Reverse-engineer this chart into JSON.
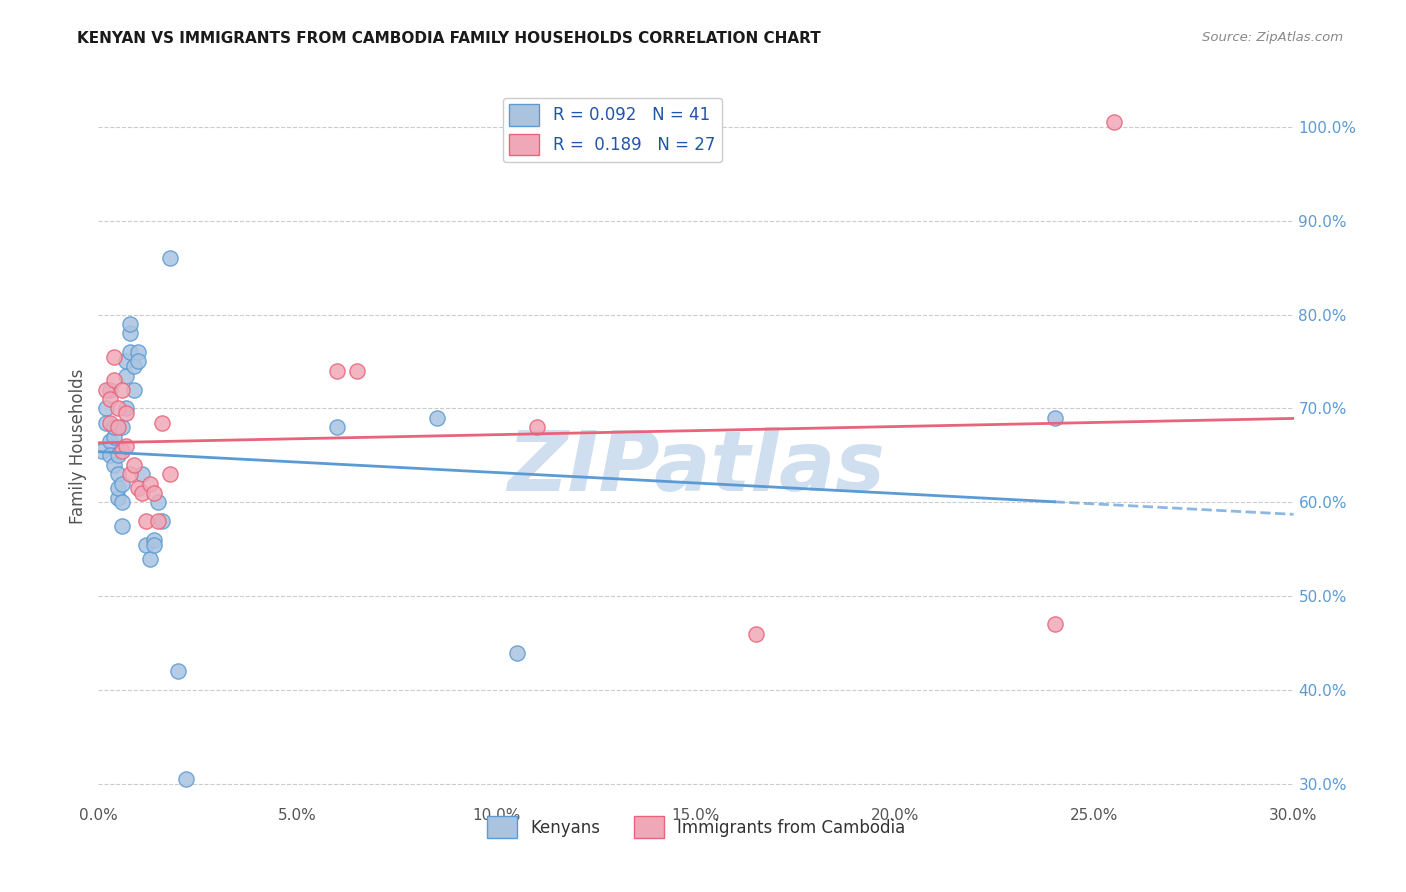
{
  "title": "KENYAN VS IMMIGRANTS FROM CAMBODIA FAMILY HOUSEHOLDS CORRELATION CHART",
  "source": "Source: ZipAtlas.com",
  "ylabel_left": "Family Households",
  "xlim": [
    0.0,
    0.3
  ],
  "ylim": [
    0.28,
    1.04
  ],
  "kenyan_color": "#aac4e0",
  "cambodia_color": "#f0a8b8",
  "kenyan_line_color": "#5b9bd5",
  "cambodia_line_color": "#e8647a",
  "R_kenyan": 0.092,
  "N_kenyan": 41,
  "R_cambodia": 0.189,
  "N_cambodia": 27,
  "kenyan_x": [
    0.001,
    0.002,
    0.002,
    0.003,
    0.003,
    0.003,
    0.004,
    0.004,
    0.004,
    0.005,
    0.005,
    0.005,
    0.005,
    0.006,
    0.006,
    0.006,
    0.006,
    0.007,
    0.007,
    0.007,
    0.008,
    0.008,
    0.008,
    0.009,
    0.009,
    0.01,
    0.01,
    0.011,
    0.012,
    0.013,
    0.014,
    0.014,
    0.015,
    0.016,
    0.018,
    0.02,
    0.022,
    0.06,
    0.085,
    0.24,
    0.105
  ],
  "kenyan_y": [
    0.655,
    0.7,
    0.685,
    0.665,
    0.65,
    0.72,
    0.64,
    0.67,
    0.68,
    0.65,
    0.63,
    0.605,
    0.615,
    0.6,
    0.575,
    0.62,
    0.68,
    0.7,
    0.735,
    0.75,
    0.78,
    0.79,
    0.76,
    0.72,
    0.745,
    0.76,
    0.75,
    0.63,
    0.555,
    0.54,
    0.56,
    0.555,
    0.6,
    0.58,
    0.86,
    0.42,
    0.305,
    0.68,
    0.69,
    0.69,
    0.44
  ],
  "cambodia_x": [
    0.002,
    0.003,
    0.003,
    0.004,
    0.004,
    0.005,
    0.005,
    0.006,
    0.006,
    0.007,
    0.007,
    0.008,
    0.009,
    0.01,
    0.011,
    0.012,
    0.013,
    0.014,
    0.015,
    0.016,
    0.018,
    0.06,
    0.065,
    0.11,
    0.165,
    0.24,
    0.255
  ],
  "cambodia_y": [
    0.72,
    0.71,
    0.685,
    0.73,
    0.755,
    0.7,
    0.68,
    0.72,
    0.655,
    0.695,
    0.66,
    0.63,
    0.64,
    0.615,
    0.61,
    0.58,
    0.62,
    0.61,
    0.58,
    0.685,
    0.63,
    0.74,
    0.74,
    0.68,
    0.46,
    0.47,
    1.005
  ],
  "background_color": "#ffffff",
  "grid_color": "#cccccc",
  "watermark": "ZIPatlas",
  "watermark_color": "#d0dff0",
  "x_tick_vals": [
    0.0,
    0.05,
    0.1,
    0.15,
    0.2,
    0.25,
    0.3
  ],
  "x_tick_labels": [
    "0.0%",
    "5.0%",
    "10.0%",
    "15.0%",
    "20.0%",
    "25.0%",
    "30.0%"
  ],
  "y_tick_vals": [
    0.3,
    0.4,
    0.5,
    0.6,
    0.7,
    0.8,
    0.9,
    1.0
  ],
  "y_tick_labels": [
    "30.0%",
    "40.0%",
    "50.0%",
    "60.0%",
    "70.0%",
    "80.0%",
    "90.0%",
    "100.0%"
  ]
}
